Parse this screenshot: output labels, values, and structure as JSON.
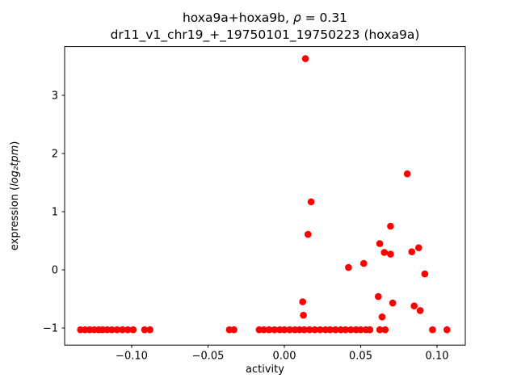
{
  "chart_data": {
    "type": "scatter",
    "title_line1_prefix": "hoxa9a+hoxa9b, ",
    "title_line1_rho": "ρ",
    "title_line1_suffix": " = 0.31",
    "title_line2": "dr11_v1_chr19_+_19750101_19750223 (hoxa9a)",
    "xlabel": "activity",
    "ylabel_prefix": "expression (",
    "ylabel_math": "log₂tpm",
    "ylabel_suffix": ")",
    "xlim": [
      -0.1439,
      0.1185
    ],
    "ylim": [
      -1.294,
      3.839
    ],
    "xticks": [
      {
        "value": -0.1,
        "label": "−0.10"
      },
      {
        "value": -0.05,
        "label": "−0.05"
      },
      {
        "value": 0.0,
        "label": "0.00"
      },
      {
        "value": 0.05,
        "label": "0.05"
      },
      {
        "value": 0.1,
        "label": "0.10"
      }
    ],
    "yticks": [
      {
        "value": -1,
        "label": "−1"
      },
      {
        "value": 0,
        "label": "0"
      },
      {
        "value": 1,
        "label": "1"
      },
      {
        "value": 2,
        "label": "2"
      },
      {
        "value": 3,
        "label": "3"
      }
    ],
    "grid": false,
    "legend": null,
    "marker": {
      "color": "#ff0000",
      "radius": 4.3,
      "shape": "circle"
    },
    "points": [
      [
        -0.1335,
        -1.03
      ],
      [
        -0.1305,
        -1.03
      ],
      [
        -0.1275,
        -1.03
      ],
      [
        -0.1245,
        -1.03
      ],
      [
        -0.1215,
        -1.03
      ],
      [
        -0.119,
        -1.03
      ],
      [
        -0.116,
        -1.03
      ],
      [
        -0.113,
        -1.03
      ],
      [
        -0.1095,
        -1.03
      ],
      [
        -0.106,
        -1.03
      ],
      [
        -0.1025,
        -1.03
      ],
      [
        -0.099,
        -1.03
      ],
      [
        -0.0915,
        -1.03
      ],
      [
        -0.088,
        -1.03
      ],
      [
        -0.036,
        -1.03
      ],
      [
        -0.033,
        -1.03
      ],
      [
        -0.0165,
        -1.03
      ],
      [
        -0.0135,
        -1.03
      ],
      [
        -0.01,
        -1.03
      ],
      [
        -0.0065,
        -1.03
      ],
      [
        -0.003,
        -1.03
      ],
      [
        0.0,
        -1.03
      ],
      [
        0.0035,
        -1.03
      ],
      [
        0.007,
        -1.03
      ],
      [
        0.01,
        -1.03
      ],
      [
        0.013,
        -1.03
      ],
      [
        0.0165,
        -1.03
      ],
      [
        0.02,
        -1.03
      ],
      [
        0.0235,
        -1.03
      ],
      [
        0.027,
        -1.03
      ],
      [
        0.03,
        -1.03
      ],
      [
        0.0335,
        -1.03
      ],
      [
        0.037,
        -1.03
      ],
      [
        0.04,
        -1.03
      ],
      [
        0.0435,
        -1.03
      ],
      [
        0.047,
        -1.03
      ],
      [
        0.05,
        -1.03
      ],
      [
        0.0535,
        -1.03
      ],
      [
        0.056,
        -1.03
      ],
      [
        0.0625,
        -1.03
      ],
      [
        0.066,
        -1.03
      ],
      [
        0.097,
        -1.03
      ],
      [
        0.1065,
        -1.03
      ],
      [
        0.0138,
        3.63
      ],
      [
        0.0175,
        1.17
      ],
      [
        0.0155,
        0.61
      ],
      [
        0.0805,
        1.65
      ],
      [
        0.0695,
        0.75
      ],
      [
        0.0625,
        0.45
      ],
      [
        0.0655,
        0.3
      ],
      [
        0.0695,
        0.27
      ],
      [
        0.088,
        0.38
      ],
      [
        0.0835,
        0.31
      ],
      [
        0.042,
        0.04
      ],
      [
        0.052,
        0.11
      ],
      [
        0.092,
        -0.07
      ],
      [
        0.012,
        -0.55
      ],
      [
        0.0125,
        -0.78
      ],
      [
        0.0615,
        -0.46
      ],
      [
        0.071,
        -0.57
      ],
      [
        0.085,
        -0.62
      ],
      [
        0.089,
        -0.7
      ],
      [
        0.064,
        -0.81
      ]
    ]
  }
}
